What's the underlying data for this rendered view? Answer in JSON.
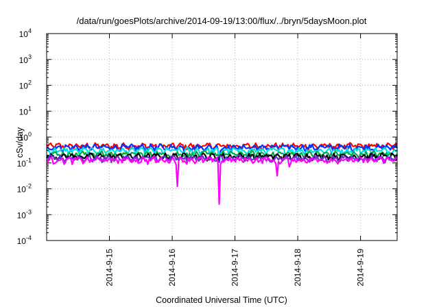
{
  "chart_data": {
    "type": "line",
    "title": "/data/run/goesPlots/archive/2014-09-19/13:00/flux/../bryn/5daysMoon.plot",
    "xlabel": "Coordinated Universal Time (UTC)",
    "ylabel": "cSv/day",
    "y_scale": "log",
    "ylim": [
      0.0001,
      10000
    ],
    "xlim": [
      "2014-09-14 00:00",
      "2014-09-19 14:00"
    ],
    "x_tick_labels": [
      "2014-9-15",
      "2014-9-16",
      "2014-9-17",
      "2014-9-18",
      "2014-9-19"
    ],
    "y_tick_labels": [
      {
        "base": "10",
        "exp": "4"
      },
      {
        "base": "10",
        "exp": "3"
      },
      {
        "base": "10",
        "exp": "2"
      },
      {
        "base": "10",
        "exp": "1"
      },
      {
        "base": "10",
        "exp": "0"
      },
      {
        "base": "10",
        "exp": "-1"
      },
      {
        "base": "10",
        "exp": "-2"
      },
      {
        "base": "10",
        "exp": "-3"
      },
      {
        "base": "10",
        "exp": "-4"
      }
    ],
    "grid": true,
    "series": [
      {
        "color": "#ff0000",
        "baseline": 0.45,
        "dips": []
      },
      {
        "color": "#0033ff",
        "baseline": 0.4,
        "dips": [
          [
            "2014-09-16 18:00",
            0.1
          ]
        ]
      },
      {
        "color": "#00e0e0",
        "baseline": 0.3,
        "dips": [
          [
            "2014-09-16 18:00",
            0.15
          ]
        ]
      },
      {
        "color": "#00aa44",
        "baseline": 0.22,
        "dips": []
      },
      {
        "color": "#000000",
        "baseline": 0.18,
        "dips": []
      },
      {
        "color": "#6633cc",
        "baseline": 0.15,
        "dips": []
      },
      {
        "color": "#ff00ff",
        "baseline": 0.13,
        "dips": [
          [
            "2014-09-16 02:00",
            0.012
          ],
          [
            "2014-09-16 18:00",
            0.002
          ],
          [
            "2014-09-17 16:00",
            0.02
          ],
          [
            "2014-09-17 21:00",
            0.06
          ]
        ]
      }
    ]
  }
}
